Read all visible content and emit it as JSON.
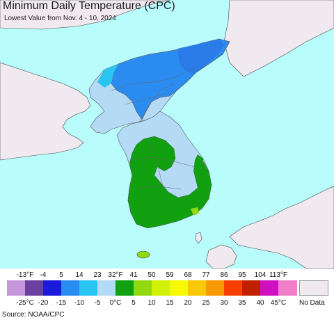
{
  "header": {
    "title": "Minimum Daily Temperature (CPC)",
    "subtitle": "Lowest Value from Nov. 4 - 10, 2024"
  },
  "legend": {
    "fahrenheit_ticks": [
      "-13°F",
      "-4",
      "5",
      "14",
      "23",
      "32°F",
      "41",
      "50",
      "59",
      "68",
      "77",
      "86",
      "95",
      "104",
      "113°F"
    ],
    "celsius_ticks": [
      "-25°C",
      "-20",
      "-15",
      "-10",
      "-5",
      "0°C",
      "5",
      "10",
      "15",
      "20",
      "25",
      "30",
      "35",
      "40",
      "45°C"
    ],
    "colors": [
      "#c495d8",
      "#6b3fa0",
      "#1a1adc",
      "#2a8cf0",
      "#2ac4f0",
      "#b4daf6",
      "#10a010",
      "#90d810",
      "#d2f000",
      "#f8f800",
      "#f8c800",
      "#f89800",
      "#f84000",
      "#c02000",
      "#d010c0",
      "#f07ec8"
    ],
    "no_data_label": "No Data"
  },
  "footer": {
    "source": "Source: NOAA/CPC"
  },
  "map_colors": {
    "water": "#b8fcfc",
    "land_no_data": "#f0eaf0",
    "light_blue": "#b4daf6",
    "mid_blue": "#2a8cf0",
    "green": "#10a010",
    "yellow_green": "#90d810"
  }
}
